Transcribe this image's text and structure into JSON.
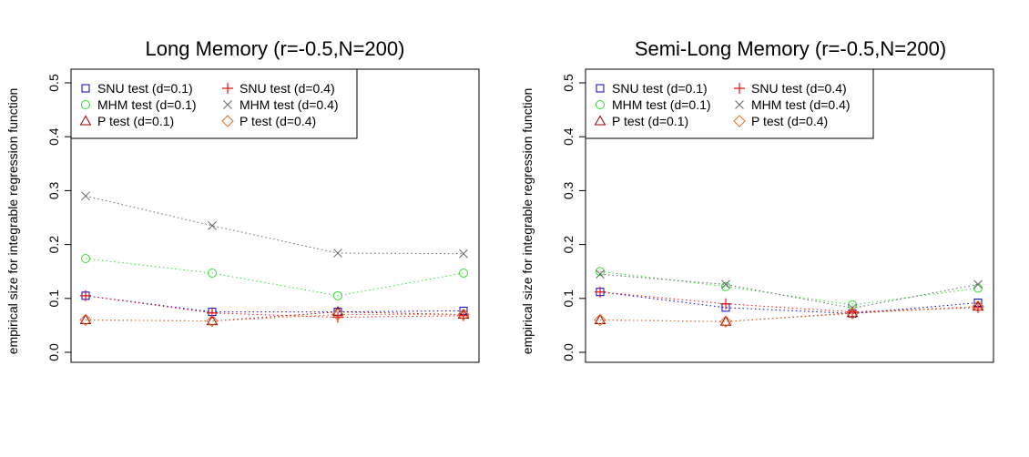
{
  "chart_data": [
    {
      "type": "line",
      "title": "Long Memory (r=-0.5,N=200)",
      "ylabel": "empirical size for integrable regression function",
      "xlabel": "",
      "ylim": [
        0,
        0.5
      ],
      "y_ticks": [
        "0.0",
        "0.1",
        "0.2",
        "0.3",
        "0.4",
        "0.5"
      ],
      "x": [
        1,
        2,
        3,
        4
      ],
      "series": [
        {
          "name": "SNU test (d=0.1)",
          "values": [
            0.105,
            0.075,
            0.075,
            0.077
          ],
          "color": "#0000cc",
          "marker": "square"
        },
        {
          "name": "MHM test (d=0.1)",
          "values": [
            0.174,
            0.147,
            0.105,
            0.147
          ],
          "color": "#33dd33",
          "marker": "circle"
        },
        {
          "name": "P test (d=0.1)",
          "values": [
            0.06,
            0.058,
            0.075,
            0.07
          ],
          "color": "#990000",
          "marker": "triangle"
        },
        {
          "name": "SNU test (d=0.4)",
          "values": [
            0.105,
            0.073,
            0.065,
            0.068
          ],
          "color": "#ee1111",
          "marker": "plus"
        },
        {
          "name": "MHM test (d=0.4)",
          "values": [
            0.29,
            0.235,
            0.184,
            0.183
          ],
          "color": "#666666",
          "marker": "cross"
        },
        {
          "name": "P test (d=0.4)",
          "values": [
            0.06,
            0.058,
            0.07,
            0.07
          ],
          "color": "#e0702a",
          "marker": "diamond"
        }
      ]
    },
    {
      "type": "line",
      "title": "Semi-Long Memory (r=-0.5,N=200)",
      "ylabel": "empirical size for integrable regression function",
      "xlabel": "",
      "ylim": [
        0,
        0.5
      ],
      "y_ticks": [
        "0.0",
        "0.1",
        "0.2",
        "0.3",
        "0.4",
        "0.5"
      ],
      "x": [
        1,
        2,
        3,
        4
      ],
      "series": [
        {
          "name": "SNU test (d=0.1)",
          "values": [
            0.112,
            0.083,
            0.072,
            0.092
          ],
          "color": "#0000cc",
          "marker": "square"
        },
        {
          "name": "MHM test (d=0.1)",
          "values": [
            0.15,
            0.122,
            0.088,
            0.119
          ],
          "color": "#33dd33",
          "marker": "circle"
        },
        {
          "name": "P test (d=0.1)",
          "values": [
            0.06,
            0.057,
            0.073,
            0.085
          ],
          "color": "#990000",
          "marker": "triangle"
        },
        {
          "name": "SNU test (d=0.4)",
          "values": [
            0.112,
            0.09,
            0.075,
            0.083
          ],
          "color": "#ee1111",
          "marker": "plus"
        },
        {
          "name": "MHM test (d=0.4)",
          "values": [
            0.145,
            0.126,
            0.082,
            0.126
          ],
          "color": "#666666",
          "marker": "cross"
        },
        {
          "name": "P test (d=0.4)",
          "values": [
            0.06,
            0.057,
            0.072,
            0.085
          ],
          "color": "#e0702a",
          "marker": "diamond"
        }
      ]
    }
  ]
}
